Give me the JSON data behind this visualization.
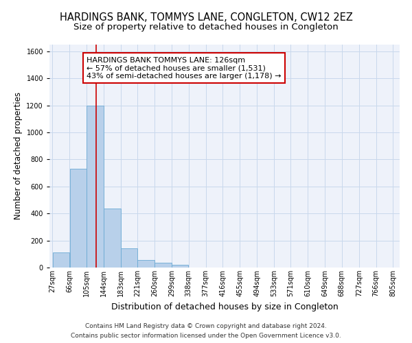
{
  "title": "HARDINGS BANK, TOMMYS LANE, CONGLETON, CW12 2EZ",
  "subtitle": "Size of property relative to detached houses in Congleton",
  "xlabel": "Distribution of detached houses by size in Congleton",
  "ylabel": "Number of detached properties",
  "bar_values": [
    110,
    730,
    1200,
    435,
    140,
    55,
    35,
    20,
    0,
    0,
    0,
    0,
    0,
    0,
    0,
    0,
    0,
    0,
    0
  ],
  "bar_left_edges": [
    27,
    66,
    105,
    144,
    183,
    221,
    260,
    299,
    338,
    377,
    416,
    455,
    494,
    533,
    571,
    610,
    649,
    688,
    727
  ],
  "bar_widths": [
    39,
    39,
    39,
    39,
    38,
    39,
    39,
    39,
    39,
    39,
    39,
    39,
    39,
    38,
    39,
    39,
    39,
    39,
    39
  ],
  "xtick_labels": [
    "27sqm",
    "66sqm",
    "105sqm",
    "144sqm",
    "183sqm",
    "221sqm",
    "260sqm",
    "299sqm",
    "338sqm",
    "377sqm",
    "416sqm",
    "455sqm",
    "494sqm",
    "533sqm",
    "571sqm",
    "610sqm",
    "649sqm",
    "688sqm",
    "727sqm",
    "766sqm",
    "805sqm"
  ],
  "xtick_positions": [
    27,
    66,
    105,
    144,
    183,
    221,
    260,
    299,
    338,
    377,
    416,
    455,
    494,
    533,
    571,
    610,
    649,
    688,
    727,
    766,
    805
  ],
  "ylim": [
    0,
    1650
  ],
  "xlim": [
    20,
    820
  ],
  "bar_color": "#b8d0ea",
  "bar_edge_color": "#6aaad4",
  "grid_color": "#c8d8ec",
  "bg_color": "#eef2fa",
  "vline_x": 126,
  "vline_color": "#cc0000",
  "annotation_text": "HARDINGS BANK TOMMYS LANE: 126sqm\n← 57% of detached houses are smaller (1,531)\n43% of semi-detached houses are larger (1,178) →",
  "annotation_box_color": "#ffffff",
  "annotation_box_edge": "#cc0000",
  "footer1": "Contains HM Land Registry data © Crown copyright and database right 2024.",
  "footer2": "Contains public sector information licensed under the Open Government Licence v3.0.",
  "title_fontsize": 10.5,
  "subtitle_fontsize": 9.5,
  "ylabel_fontsize": 8.5,
  "xlabel_fontsize": 9,
  "tick_fontsize": 7,
  "annotation_fontsize": 8,
  "footer_fontsize": 6.5
}
